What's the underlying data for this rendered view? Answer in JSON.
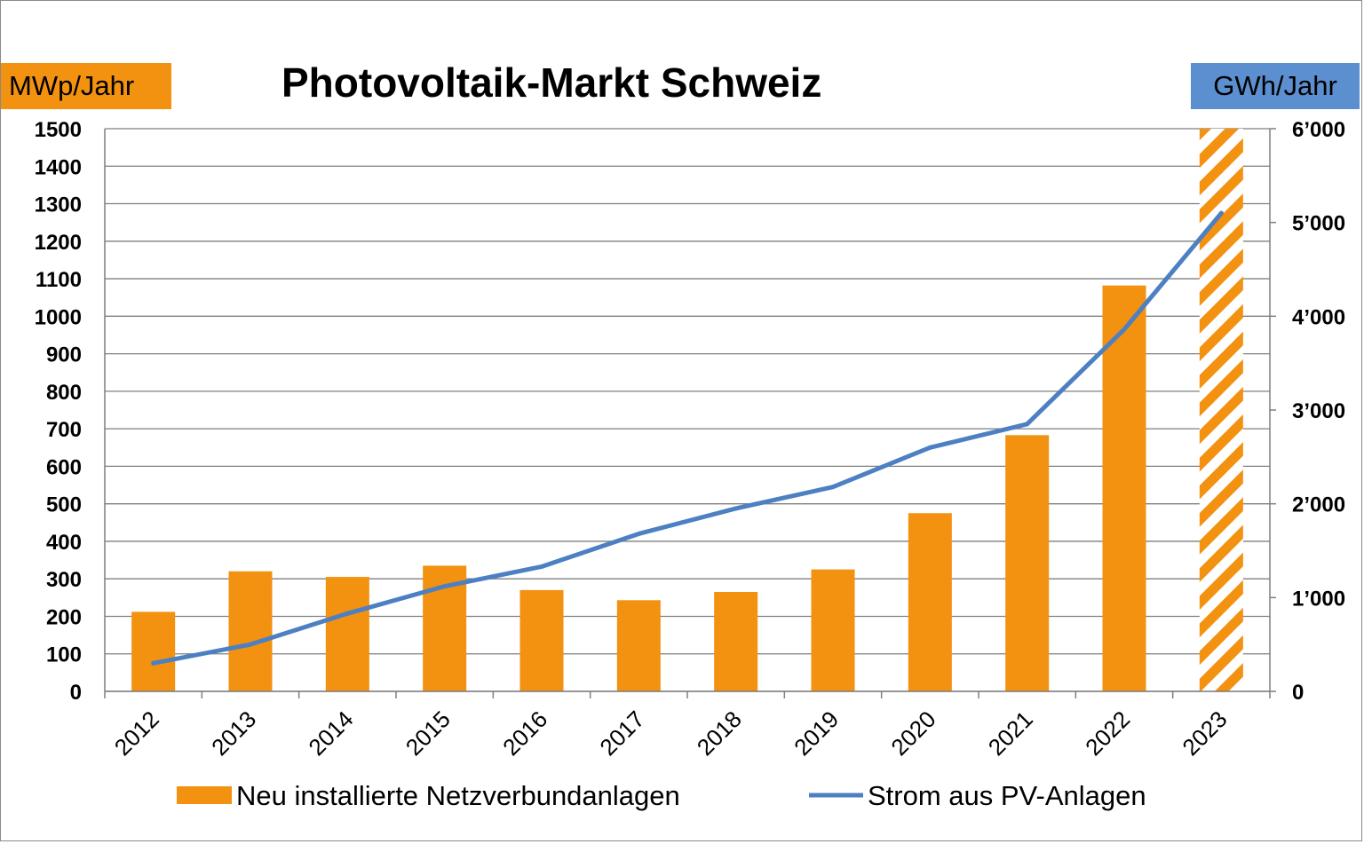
{
  "chart_data": {
    "type": "bar",
    "title": "Photovoltaik-Markt Schweiz",
    "y_left_unit": "MWp/Jahr",
    "y_right_unit": "GWh/Jahr",
    "categories": [
      "2012",
      "2013",
      "2014",
      "2015",
      "2016",
      "2017",
      "2018",
      "2019",
      "2020",
      "2021",
      "2022",
      "2023"
    ],
    "series": [
      {
        "name": "Neu installierte Netzverbundanlagen",
        "type": "bar",
        "axis": "left",
        "color": "#F39110",
        "values": [
          212,
          320,
          305,
          335,
          270,
          243,
          265,
          325,
          475,
          683,
          1082,
          null
        ],
        "projected_category": "2023"
      },
      {
        "name": "Strom aus PV-Anlagen",
        "type": "line",
        "axis": "right",
        "color": "#4D80C2",
        "values": [
          300,
          500,
          830,
          1120,
          1330,
          1680,
          1950,
          2180,
          2600,
          2850,
          3860,
          5100
        ]
      }
    ],
    "y_left_range": [
      0,
      1500
    ],
    "y_left_ticks": [
      "0",
      "100",
      "200",
      "300",
      "400",
      "500",
      "600",
      "700",
      "800",
      "900",
      "1000",
      "1100",
      "1200",
      "1300",
      "1400",
      "1500"
    ],
    "y_right_range": [
      0,
      6000
    ],
    "y_right_ticks": [
      "0",
      "1’000",
      "2’000",
      "3’000",
      "4’000",
      "5’000",
      "6’000"
    ],
    "grid": "horizontal",
    "legend_position": "bottom"
  },
  "colors": {
    "left_unit_badge": "#F39110",
    "right_unit_badge": "#5B8FD0",
    "gridline": "#7f7f7f",
    "axis": "#7f7f7f"
  }
}
